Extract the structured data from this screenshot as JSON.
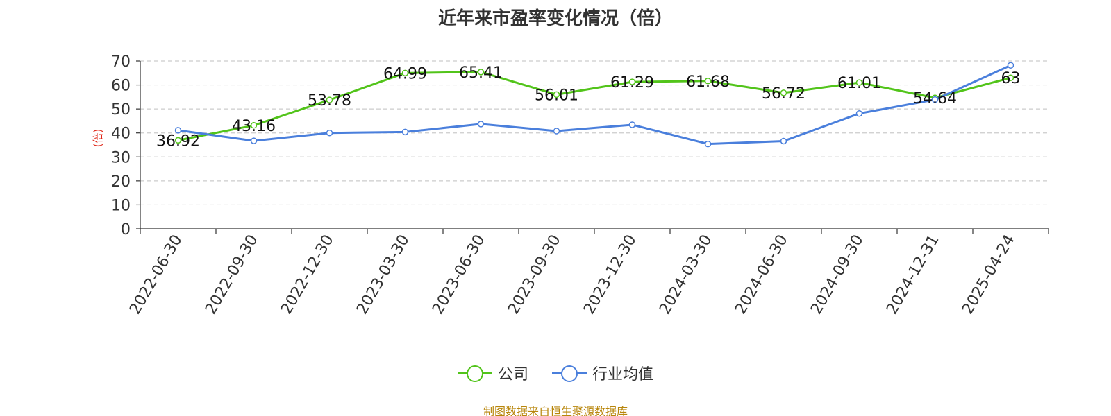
{
  "chart_data": {
    "type": "line",
    "title": "近年来市盈率变化情况（倍）",
    "ylabel": "(倍)",
    "xlabel": "",
    "ylim": [
      0,
      70
    ],
    "yticks": [
      0,
      10,
      20,
      30,
      40,
      50,
      60,
      70
    ],
    "grid": true,
    "legend_position": "bottom",
    "categories": [
      "2022-06-30",
      "2022-09-30",
      "2022-12-30",
      "2023-03-30",
      "2023-06-30",
      "2023-09-30",
      "2023-12-30",
      "2024-03-30",
      "2024-06-30",
      "2024-09-30",
      "2024-12-31",
      "2025-04-24"
    ],
    "series": [
      {
        "name": "公司",
        "color": "#52c41a",
        "values": [
          36.92,
          43.16,
          53.78,
          64.99,
          65.41,
          56.01,
          61.29,
          61.68,
          56.72,
          61.01,
          54.64,
          63
        ],
        "labels": [
          "36.92",
          "43.16",
          "53.78",
          "64.99",
          "65.41",
          "56.01",
          "61.29",
          "61.68",
          "56.72",
          "61.01",
          "54.64",
          "63"
        ]
      },
      {
        "name": "行业均值",
        "color": "#4a7fdc",
        "values": [
          41.1,
          36.7,
          40.0,
          40.4,
          43.7,
          40.8,
          43.4,
          35.4,
          36.6,
          48.1,
          53.9,
          68.2
        ]
      }
    ],
    "source": "制图数据来自恒生聚源数据库"
  }
}
